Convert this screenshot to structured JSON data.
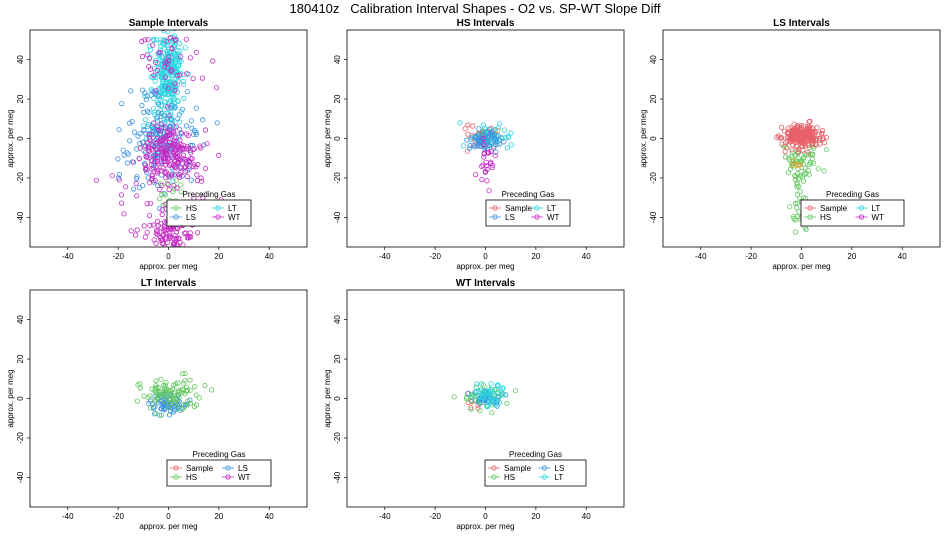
{
  "figure": {
    "title": "180410z   Calibration Interval Shapes - O2 vs. SP-WT Slope Diff"
  },
  "colors": {
    "Sample": "#E8606A",
    "HS": "#61C85E",
    "LS": "#3A93E0",
    "LT": "#2DD6E0",
    "WT": "#C42AC4",
    "Other": "#E09C2A"
  },
  "chart_data": [
    {
      "type": "scatter",
      "title": "Sample Intervals",
      "xlabel": "approx. per meg",
      "ylabel": "approx. per meg",
      "xlim": [
        -55,
        55
      ],
      "ylim": [
        -55,
        55
      ],
      "xticks": [
        -40,
        -20,
        0,
        20,
        40
      ],
      "yticks": [
        -40,
        -20,
        0,
        20,
        40
      ],
      "legend": {
        "title": "Preceding Gas",
        "position": "bottom-right",
        "entries": [
          "HS",
          "LT",
          "LS",
          "WT"
        ]
      },
      "series": [
        {
          "name": "LT",
          "clusters": [
            {
              "cx": 0,
              "cy": 35,
              "sx": 3,
              "sy": 10,
              "n": 260
            },
            {
              "cx": -3,
              "cy": 5,
              "sx": 4,
              "sy": 10,
              "n": 60
            }
          ]
        },
        {
          "name": "LS",
          "clusters": [
            {
              "cx": -3,
              "cy": 0,
              "sx": 7,
              "sy": 12,
              "n": 170
            }
          ]
        },
        {
          "name": "HS",
          "clusters": [
            {
              "cx": 0,
              "cy": -28,
              "sx": 3,
              "sy": 5,
              "n": 15
            }
          ]
        },
        {
          "name": "WT",
          "clusters": [
            {
              "cx": 0,
              "cy": -8,
              "sx": 6,
              "sy": 7,
              "n": 200
            },
            {
              "cx": 0,
              "cy": -47,
              "sx": 5,
              "sy": 4,
              "n": 90
            },
            {
              "cx": -1,
              "cy": 38,
              "sx": 7,
              "sy": 10,
              "n": 50
            },
            {
              "cx": 0,
              "cy": -25,
              "sx": 12,
              "sy": 10,
              "n": 40
            }
          ]
        }
      ]
    },
    {
      "type": "scatter",
      "title": "HS Intervals",
      "xlabel": "approx. per meg",
      "ylabel": "approx. per meg",
      "xlim": [
        -55,
        55
      ],
      "ylim": [
        -55,
        55
      ],
      "xticks": [
        -40,
        -20,
        0,
        20,
        40
      ],
      "yticks": [
        -40,
        -20,
        0,
        20,
        40
      ],
      "legend": {
        "title": "Preceding Gas",
        "position": "bottom-right",
        "entries": [
          "Sample",
          "LT",
          "LS",
          "WT"
        ]
      },
      "series": [
        {
          "name": "Sample",
          "clusters": [
            {
              "cx": -2,
              "cy": 0,
              "sx": 4,
              "sy": 3,
              "n": 30
            }
          ]
        },
        {
          "name": "Other",
          "clusters": [
            {
              "cx": -1,
              "cy": 1,
              "sx": 3,
              "sy": 3,
              "n": 10
            }
          ]
        },
        {
          "name": "LT",
          "clusters": [
            {
              "cx": 1,
              "cy": 0,
              "sx": 4,
              "sy": 3,
              "n": 40
            }
          ]
        },
        {
          "name": "LS",
          "clusters": [
            {
              "cx": 0,
              "cy": -1,
              "sx": 3,
              "sy": 3,
              "n": 60
            }
          ]
        },
        {
          "name": "WT",
          "clusters": [
            {
              "cx": 0,
              "cy": -14,
              "sx": 1.5,
              "sy": 7,
              "n": 25
            }
          ]
        }
      ]
    },
    {
      "type": "scatter",
      "title": "LS Intervals",
      "xlabel": "approx. per meg",
      "ylabel": "approx. per meg",
      "xlim": [
        -55,
        55
      ],
      "ylim": [
        -55,
        55
      ],
      "xticks": [
        -40,
        -20,
        0,
        20,
        40
      ],
      "yticks": [
        -40,
        -20,
        0,
        20,
        40
      ],
      "legend": {
        "title": "Preceding Gas",
        "position": "bottom-right",
        "entries": [
          "Sample",
          "LT",
          "HS",
          "WT"
        ]
      },
      "series": [
        {
          "name": "HS",
          "clusters": [
            {
              "cx": 0,
              "cy": -10,
              "sx": 4,
              "sy": 5,
              "n": 60
            },
            {
              "cx": -1,
              "cy": -35,
              "sx": 1.5,
              "sy": 9,
              "n": 30
            }
          ]
        },
        {
          "name": "Other",
          "clusters": [
            {
              "cx": -4,
              "cy": -13,
              "sx": 1.5,
              "sy": 1.5,
              "n": 5
            }
          ]
        },
        {
          "name": "Sample",
          "clusters": [
            {
              "cx": 0,
              "cy": 1,
              "sx": 4,
              "sy": 3,
              "n": 220
            }
          ]
        }
      ]
    },
    {
      "type": "scatter",
      "title": "LT Intervals",
      "xlabel": "approx. per meg",
      "ylabel": "approx. per meg",
      "xlim": [
        -55,
        55
      ],
      "ylim": [
        -55,
        55
      ],
      "xticks": [
        -40,
        -20,
        0,
        20,
        40
      ],
      "yticks": [
        -40,
        -20,
        0,
        20,
        40
      ],
      "legend": {
        "title": "Preceding Gas",
        "position": "bottom-right",
        "entries": [
          "Sample",
          "LS",
          "HS",
          "WT"
        ]
      },
      "series": [
        {
          "name": "LS",
          "clusters": [
            {
              "cx": 0,
              "cy": -3,
              "sx": 4,
              "sy": 2.5,
              "n": 70
            }
          ]
        },
        {
          "name": "HS",
          "clusters": [
            {
              "cx": 0,
              "cy": 3,
              "sx": 7,
              "sy": 4,
              "n": 90
            }
          ]
        }
      ]
    },
    {
      "type": "scatter",
      "title": "WT Intervals",
      "xlabel": "approx. per meg",
      "ylabel": "approx. per meg",
      "xlim": [
        -55,
        55
      ],
      "ylim": [
        -55,
        55
      ],
      "xticks": [
        -40,
        -20,
        0,
        20,
        40
      ],
      "yticks": [
        -40,
        -20,
        0,
        20,
        40
      ],
      "legend": {
        "title": "Preceding Gas",
        "position": "bottom-right",
        "entries": [
          "Sample",
          "LS",
          "HS",
          "LT"
        ]
      },
      "series": [
        {
          "name": "Sample",
          "clusters": [
            {
              "cx": -4,
              "cy": -2,
              "sx": 2,
              "sy": 1.5,
              "n": 8
            }
          ]
        },
        {
          "name": "HS",
          "clusters": [
            {
              "cx": 0,
              "cy": 0,
              "sx": 5,
              "sy": 2.5,
              "n": 50
            }
          ]
        },
        {
          "name": "LS",
          "clusters": [
            {
              "cx": 1,
              "cy": 0,
              "sx": 3,
              "sy": 2,
              "n": 35
            }
          ]
        },
        {
          "name": "LT",
          "clusters": [
            {
              "cx": 1,
              "cy": 2,
              "sx": 4,
              "sy": 3,
              "n": 45
            }
          ]
        }
      ]
    }
  ]
}
